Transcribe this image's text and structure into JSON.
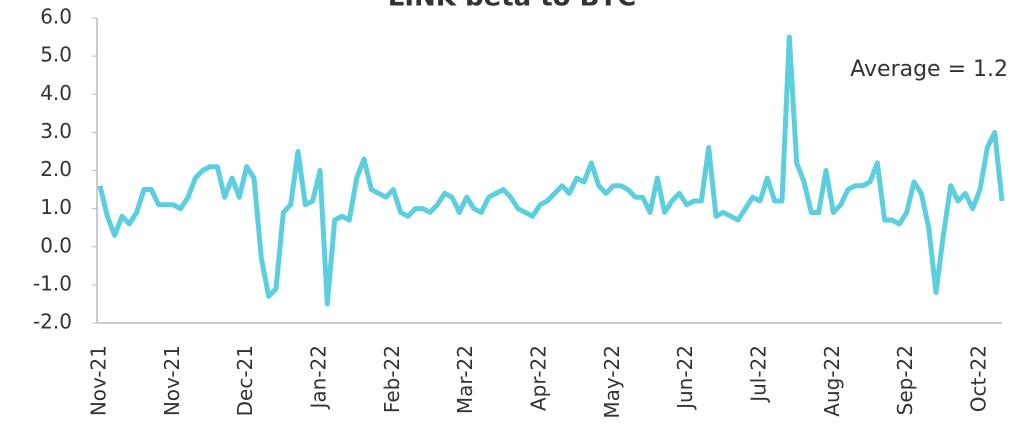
{
  "chart_data": {
    "type": "line",
    "title": "LINK beta to BTC",
    "annotations": [
      "Average = 1.2"
    ],
    "categories": [
      "Nov-21",
      null,
      null,
      null,
      null,
      null,
      null,
      null,
      null,
      null,
      "Nov-21",
      null,
      null,
      null,
      null,
      null,
      null,
      null,
      null,
      null,
      "Dec-21",
      null,
      null,
      null,
      null,
      null,
      null,
      null,
      null,
      null,
      "Jan-22",
      null,
      null,
      null,
      null,
      null,
      null,
      null,
      null,
      null,
      "Feb-22",
      null,
      null,
      null,
      null,
      null,
      null,
      null,
      null,
      null,
      "Mar-22",
      null,
      null,
      null,
      null,
      null,
      null,
      null,
      null,
      null,
      "Apr-22",
      null,
      null,
      null,
      null,
      null,
      null,
      null,
      null,
      null,
      "May-22",
      null,
      null,
      null,
      null,
      null,
      null,
      null,
      null,
      null,
      "Jun-22",
      null,
      null,
      null,
      null,
      null,
      null,
      null,
      null,
      null,
      "Jul-22",
      null,
      null,
      null,
      null,
      null,
      null,
      null,
      null,
      null,
      "Aug-22",
      null,
      null,
      null,
      null,
      null,
      null,
      null,
      null,
      null,
      "Sep-22",
      null,
      null,
      null,
      null,
      null,
      null,
      null,
      null,
      null,
      "Oct-22",
      null,
      null,
      null
    ],
    "series": [
      {
        "name": "LINK beta to BTC",
        "color": "#5bcfe0",
        "values": [
          1.6,
          0.8,
          0.3,
          0.8,
          0.6,
          0.9,
          1.5,
          1.5,
          1.1,
          1.1,
          1.1,
          1.0,
          1.3,
          1.8,
          2.0,
          2.1,
          2.1,
          1.3,
          1.8,
          1.3,
          2.1,
          1.8,
          -0.3,
          -1.3,
          -1.1,
          0.9,
          1.1,
          2.5,
          1.1,
          1.2,
          2.0,
          -1.5,
          0.7,
          0.8,
          0.7,
          1.8,
          2.3,
          1.5,
          1.4,
          1.3,
          1.5,
          0.9,
          0.8,
          1.0,
          1.0,
          0.9,
          1.1,
          1.4,
          1.3,
          0.9,
          1.3,
          1.0,
          0.9,
          1.3,
          1.4,
          1.5,
          1.3,
          1.0,
          0.9,
          0.8,
          1.1,
          1.2,
          1.4,
          1.6,
          1.4,
          1.8,
          1.7,
          2.2,
          1.6,
          1.4,
          1.6,
          1.6,
          1.5,
          1.3,
          1.3,
          0.9,
          1.8,
          0.9,
          1.2,
          1.4,
          1.1,
          1.2,
          1.2,
          2.6,
          0.8,
          0.9,
          0.8,
          0.7,
          1.0,
          1.3,
          1.2,
          1.8,
          1.2,
          1.2,
          5.5,
          2.2,
          1.7,
          0.9,
          0.9,
          2.0,
          0.9,
          1.1,
          1.5,
          1.6,
          1.6,
          1.7,
          2.2,
          0.7,
          0.7,
          0.6,
          0.9,
          1.7,
          1.4,
          0.5,
          -1.2,
          0.3,
          1.6,
          1.2,
          1.4,
          1.0,
          1.5,
          2.6,
          3.0,
          1.2
        ]
      }
    ],
    "ylim": [
      -2,
      6
    ],
    "yticks": [
      {
        "value": -2,
        "label": "-2.0"
      },
      {
        "value": -1,
        "label": "-1.0"
      },
      {
        "value": 0,
        "label": "0.0"
      },
      {
        "value": 1,
        "label": "1.0"
      },
      {
        "value": 2,
        "label": "2.0"
      },
      {
        "value": 3,
        "label": "3.0"
      },
      {
        "value": 4,
        "label": "4.0"
      },
      {
        "value": 5,
        "label": "5.0"
      },
      {
        "value": 6,
        "label": "6.0"
      }
    ],
    "grid": false
  }
}
